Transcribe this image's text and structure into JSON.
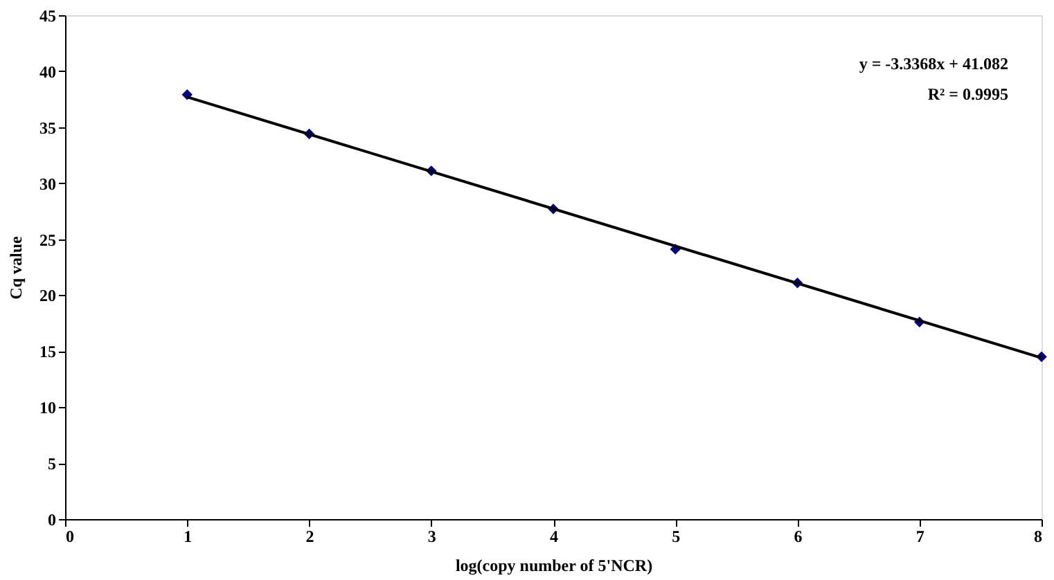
{
  "chart_data": {
    "type": "scatter",
    "xlabel": "log(copy number of 5'NCR)",
    "ylabel": "Cq value",
    "x": [
      1,
      2,
      3,
      4,
      5,
      6,
      7,
      8
    ],
    "series": [
      {
        "color": "#000080",
        "marker": "diamond",
        "values": [
          37.9,
          34.4,
          31.1,
          27.7,
          24.1,
          21.1,
          17.6,
          14.5
        ]
      },
      {
        "type": "line",
        "color": "#000000",
        "marker": "none",
        "line_style": "solid",
        "x": [
          1,
          8
        ],
        "values": [
          37.7,
          14.4
        ]
      }
    ],
    "xlim": [
      0,
      8
    ],
    "xticks": [
      0,
      1,
      2,
      3,
      4,
      5,
      6,
      7,
      8
    ],
    "ylim": [
      0,
      45
    ],
    "yticks": [
      0,
      5,
      10,
      15,
      20,
      25,
      30,
      35,
      40,
      45
    ],
    "grid": false,
    "annotations": [
      "y = -3.3368x + 41.082",
      "R² = 0.9995"
    ]
  }
}
